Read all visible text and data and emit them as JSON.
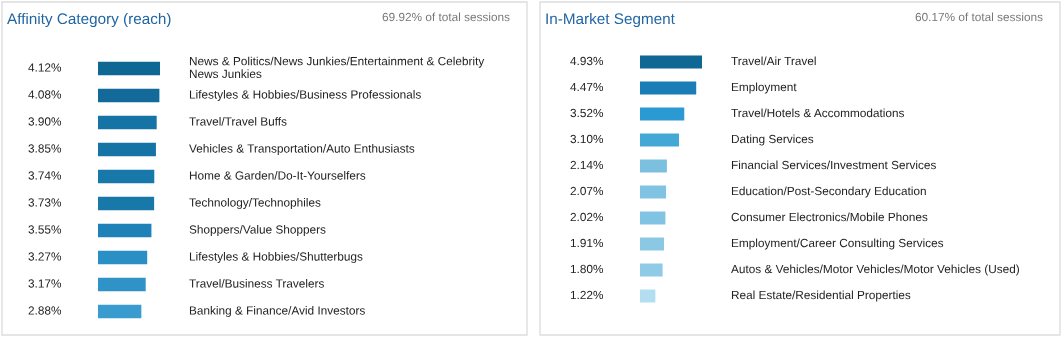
{
  "chart_data": [
    {
      "type": "bar",
      "orientation": "horizontal",
      "title": "Affinity Category (reach)",
      "subtitle": "69.92% of total sessions",
      "xlim": [
        0,
        4.12
      ],
      "categories": [
        "News & Politics/News Junkies/Entertainment & Celebrity News Junkies",
        "Lifestyles & Hobbies/Business Professionals",
        "Travel/Travel Buffs",
        "Vehicles & Transportation/Auto Enthusiasts",
        "Home & Garden/Do-It-Yourselfers",
        "Technology/Technophiles",
        "Shoppers/Value Shoppers",
        "Lifestyles & Hobbies/Shutterbugs",
        "Travel/Business Travelers",
        "Banking & Finance/Avid Investors"
      ],
      "values": [
        4.12,
        4.08,
        3.9,
        3.85,
        3.74,
        3.73,
        3.55,
        3.27,
        3.17,
        2.88
      ],
      "value_labels": [
        "4.12%",
        "4.08%",
        "3.90%",
        "3.85%",
        "3.74%",
        "3.73%",
        "3.55%",
        "3.27%",
        "3.17%",
        "2.88%"
      ],
      "colors": [
        "#0f6793",
        "#12699a",
        "#1574a5",
        "#1574a5",
        "#1878aa",
        "#1878aa",
        "#1e82b8",
        "#2a8fc5",
        "#2f93c8",
        "#3a9bcf"
      ]
    },
    {
      "type": "bar",
      "orientation": "horizontal",
      "title": "In-Market Segment",
      "subtitle": "60.17% of total sessions",
      "xlim": [
        0,
        4.93
      ],
      "categories": [
        "Travel/Air Travel",
        "Employment",
        "Travel/Hotels & Accommodations",
        "Dating Services",
        "Financial Services/Investment Services",
        "Education/Post-Secondary Education",
        "Consumer Electronics/Mobile Phones",
        "Employment/Career Consulting Services",
        "Autos & Vehicles/Motor Vehicles/Motor Vehicles (Used)",
        "Real Estate/Residential Properties"
      ],
      "values": [
        4.93,
        4.47,
        3.52,
        3.1,
        2.14,
        2.07,
        2.02,
        1.91,
        1.8,
        1.22
      ],
      "value_labels": [
        "4.93%",
        "4.47%",
        "3.52%",
        "3.10%",
        "2.14%",
        "2.07%",
        "2.02%",
        "1.91%",
        "1.80%",
        "1.22%"
      ],
      "colors": [
        "#0f6793",
        "#1a7db5",
        "#2b9ad3",
        "#44a8d6",
        "#7cc0e0",
        "#80c3e2",
        "#80c3e2",
        "#8ac8e4",
        "#8fcbe6",
        "#b3def1"
      ]
    }
  ]
}
